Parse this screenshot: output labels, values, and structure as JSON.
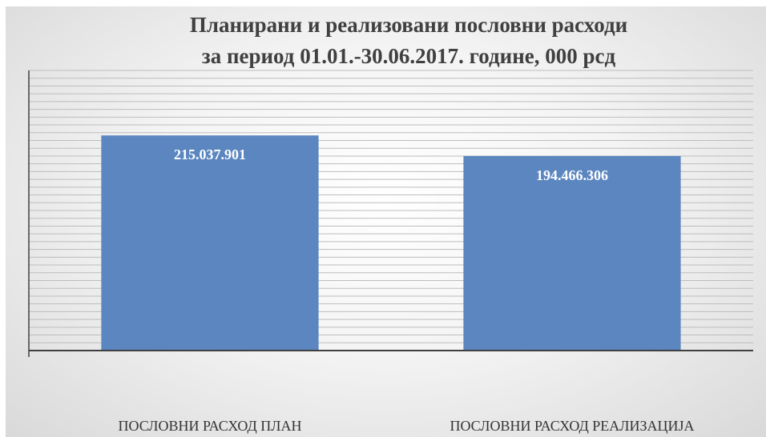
{
  "chart_data": {
    "type": "bar",
    "title": "Планирани и реализовани пословни расходи",
    "subtitle": "за период 01.01.-30.06.2017. године, 000 рсд",
    "categories": [
      "ПОСЛОВНИ РАСХОД ПЛАН",
      "ПОСЛОВНИ РАСХОД РЕАЛИЗАЦИЈА"
    ],
    "values": [
      215037901,
      194466306
    ],
    "data_labels": [
      "215.037.901",
      "194.466.306"
    ],
    "xlabel": "",
    "ylabel": "",
    "ylim": [
      0,
      280000000
    ],
    "grid": true,
    "legend": "none",
    "bar_color": "#5b86c0",
    "grid_color": "#bdbdbd",
    "axis_color": "#404040"
  }
}
